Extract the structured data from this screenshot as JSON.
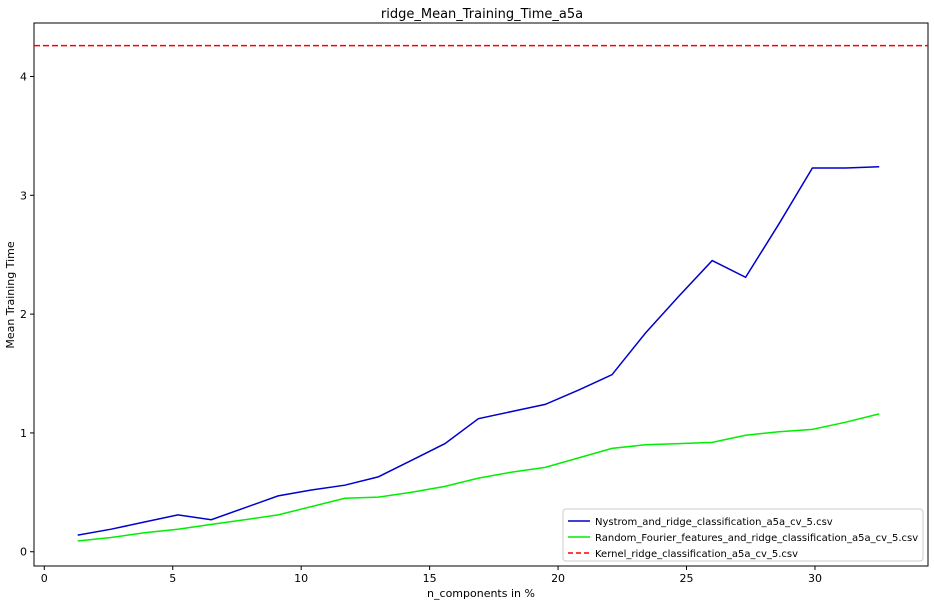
{
  "chart_data": {
    "type": "line",
    "title": "ridge_Mean_Training_Time_a5a",
    "xlabel": "n_components in %",
    "ylabel": "Mean Training Time",
    "xlim": [
      -0.4,
      34.4
    ],
    "ylim": [
      -0.12,
      4.45
    ],
    "xticks": [
      0,
      5,
      10,
      15,
      20,
      25,
      30
    ],
    "yticks": [
      0,
      1,
      2,
      3,
      4
    ],
    "grid": false,
    "legend_position": "bottom-right",
    "x": [
      1.3,
      2.6,
      3.9,
      5.2,
      6.5,
      7.8,
      9.1,
      10.4,
      11.7,
      13.0,
      14.3,
      15.6,
      16.9,
      18.2,
      19.5,
      20.8,
      22.1,
      23.4,
      24.7,
      26.0,
      27.3,
      28.6,
      29.9,
      31.2,
      32.5
    ],
    "series": [
      {
        "name": "Nystrom_and_ridge_classification_a5a_cv_5.csv",
        "color": "#0000cc",
        "style": "solid",
        "values": [
          0.14,
          0.19,
          0.25,
          0.31,
          0.27,
          0.37,
          0.47,
          0.52,
          0.56,
          0.63,
          0.77,
          0.91,
          1.12,
          1.18,
          1.24,
          1.36,
          1.49,
          1.84,
          2.15,
          2.45,
          2.31,
          2.76,
          3.23,
          3.23,
          3.24
        ]
      },
      {
        "name": "Random_Fourier_features_and_ridge_classification_a5a_cv_5.csv",
        "color": "#00ee00",
        "style": "solid",
        "values": [
          0.09,
          0.12,
          0.16,
          0.19,
          0.23,
          0.27,
          0.31,
          0.38,
          0.45,
          0.46,
          0.5,
          0.55,
          0.62,
          0.67,
          0.71,
          0.79,
          0.87,
          0.9,
          0.91,
          0.92,
          0.98,
          1.01,
          1.03,
          1.09,
          1.16
        ]
      },
      {
        "name": "Kernel_ridge_classification_a5a_cv_5.csv",
        "color": "#ff0000",
        "style": "dashed",
        "constant": 4.26
      }
    ]
  }
}
